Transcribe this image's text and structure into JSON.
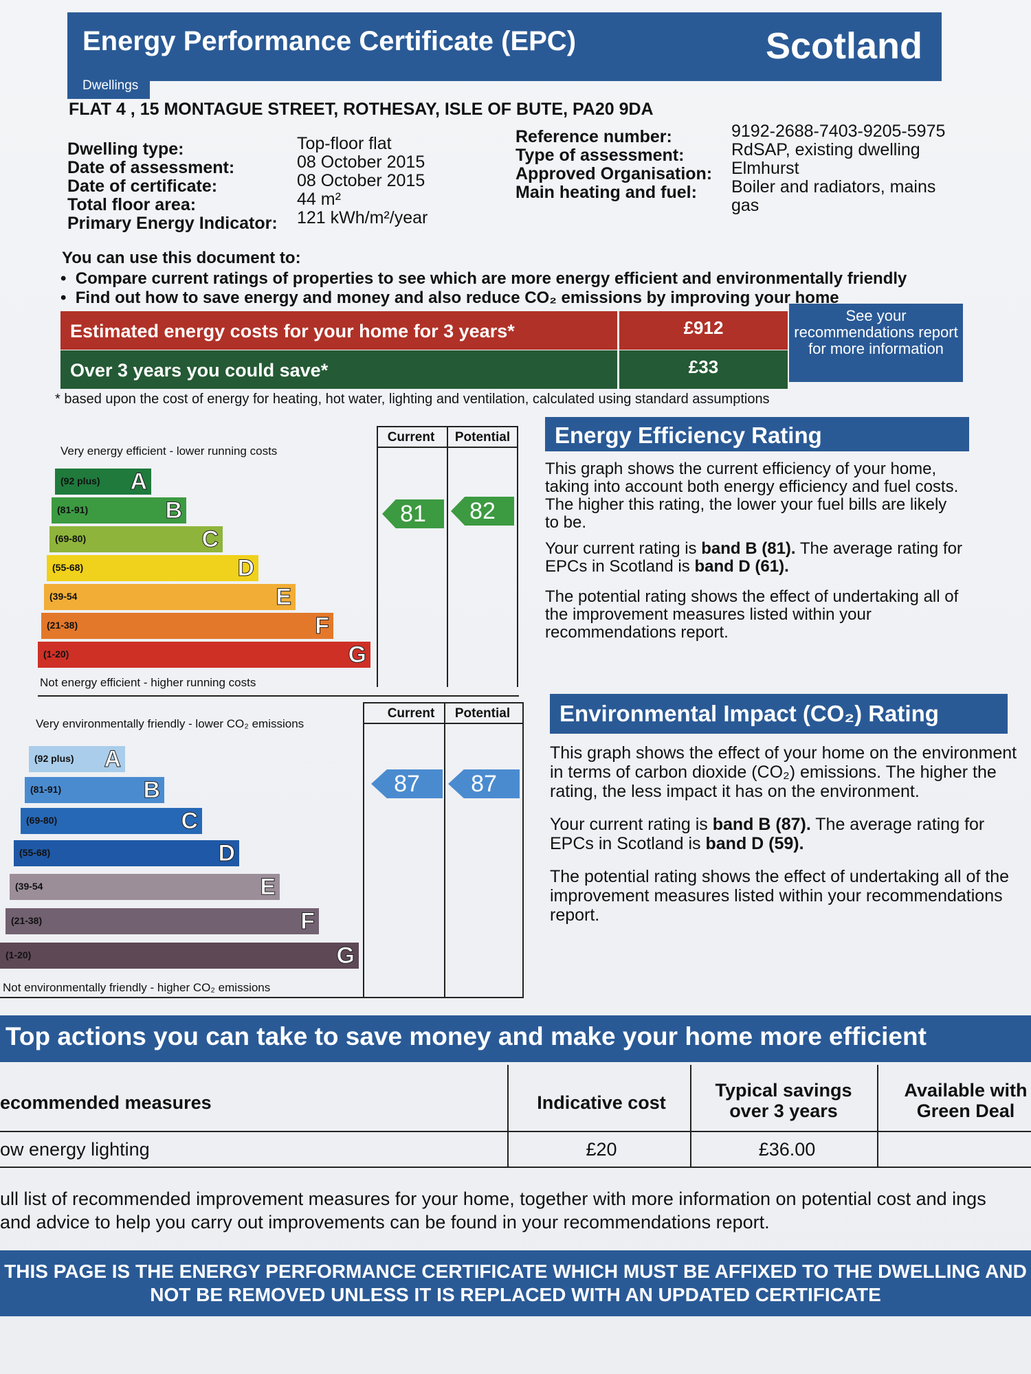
{
  "header": {
    "title": "Energy Performance Certificate (EPC)",
    "region": "Scotland",
    "subtitle": "Dwellings"
  },
  "address": "FLAT 4 , 15 MONTAGUE STREET, ROTHESAY, ISLE OF BUTE, PA20 9DA",
  "details_left": [
    {
      "label": "Dwelling type:",
      "value": "Top-floor flat"
    },
    {
      "label": "Date of assessment:",
      "value": "08 October 2015"
    },
    {
      "label": "Date of certificate:",
      "value": "08 October 2015"
    },
    {
      "label": "Total floor area:",
      "value": "44 m²"
    },
    {
      "label": "Primary Energy Indicator:",
      "value": "121 kWh/m²/year"
    }
  ],
  "details_right": [
    {
      "label": "Reference number:",
      "value": "9192-2688-7403-9205-5975"
    },
    {
      "label": "Type of assessment:",
      "value": "RdSAP, existing dwelling"
    },
    {
      "label": "Approved Organisation:",
      "value": "Elmhurst"
    },
    {
      "label": "Main heating and fuel:",
      "value": "Boiler and radiators, mains gas"
    }
  ],
  "use_intro": "You can use this document to:",
  "bullets": [
    "Compare current ratings of properties to see which are more energy efficient and environmentally friendly",
    "Find out how to save energy and money and also reduce CO₂ emissions by improving your home"
  ],
  "costs": {
    "estimated_label": "Estimated energy costs for your home for 3 years*",
    "estimated_value": "£912",
    "save_label": "Over 3 years you could save*",
    "save_value": "£33",
    "see_text": "See your recommendations report for more information",
    "footnote": "* based upon the cost of energy for heating, hot water, lighting and ventilation, calculated using standard assumptions"
  },
  "energy_chart": {
    "top_caption": "Very energy efficient - lower running costs",
    "bottom_caption": "Not energy efficient - higher running costs",
    "col_current": "Current",
    "col_potential": "Potential",
    "current": "81",
    "potential": "82",
    "bands": [
      {
        "range": "(92 plus)",
        "letter": "A",
        "color": "#1f7a3c"
      },
      {
        "range": "(81-91)",
        "letter": "B",
        "color": "#3c9a41"
      },
      {
        "range": "(69-80)",
        "letter": "C",
        "color": "#8fb43b"
      },
      {
        "range": "(55-68)",
        "letter": "D",
        "color": "#f0d11b"
      },
      {
        "range": "(39-54",
        "letter": "E",
        "color": "#f1ad35"
      },
      {
        "range": "(21-38)",
        "letter": "F",
        "color": "#e3782a"
      },
      {
        "range": "(1-20)",
        "letter": "G",
        "color": "#cf3026"
      }
    ]
  },
  "env_chart": {
    "top_caption": "Very environmentally friendly - lower CO₂ emissions",
    "bottom_caption": "Not environmentally friendly - higher CO₂ emissions",
    "col_current": "Current",
    "col_potential": "Potential",
    "current": "87",
    "potential": "87",
    "bands": [
      {
        "range": "(92 plus)",
        "letter": "A",
        "color": "#a9cdea"
      },
      {
        "range": "(81-91)",
        "letter": "B",
        "color": "#4a8bd0"
      },
      {
        "range": "(69-80)",
        "letter": "C",
        "color": "#2668b6"
      },
      {
        "range": "(55-68)",
        "letter": "D",
        "color": "#1f58a6"
      },
      {
        "range": "(39-54",
        "letter": "E",
        "color": "#9b8e99"
      },
      {
        "range": "(21-38)",
        "letter": "F",
        "color": "#726171"
      },
      {
        "range": "(1-20)",
        "letter": "G",
        "color": "#5e4856"
      }
    ]
  },
  "energy_panel": {
    "title": "Energy Efficiency Rating",
    "p1": "This graph shows the current efficiency of your home, taking into account both energy efficiency and fuel costs. The higher this rating, the lower your fuel bills are likely to be.",
    "p2a": "Your current rating is ",
    "p2b": "band B (81).",
    "p2c": " The average rating for EPCs in Scotland is ",
    "p2d": "band D (61).",
    "p3": "The potential rating shows the effect of undertaking all of the improvement measures listed within your recommendations report."
  },
  "env_panel": {
    "title": "Environmental Impact (CO₂) Rating",
    "p1": "This graph shows the effect of your home on the environment in terms of carbon dioxide (CO₂) emissions. The higher the rating, the less impact it has on the environment.",
    "p2a": "Your current rating is ",
    "p2b": "band B (87).",
    "p2c": " The average rating for EPCs in Scotland is ",
    "p2d": "band D (59).",
    "p3": "The potential rating shows the effect of undertaking all of the improvement measures listed within your recommendations report."
  },
  "actions": {
    "title": "Top actions you can take to save money and make your home more efficient",
    "headers": [
      "ecommended measures",
      "Indicative cost",
      "Typical savings over 3 years",
      "Available with Green Deal"
    ],
    "rows": [
      [
        "ow energy lighting",
        "£20",
        "£36.00",
        ""
      ]
    ],
    "note": "ull list of recommended improvement measures for your home, together with more information on potential cost and ings and advice to help you carry out improvements can be found in your recommendations report."
  },
  "bottom_banner": "THIS PAGE IS THE ENERGY PERFORMANCE CERTIFICATE WHICH MUST BE AFFIXED TO THE DWELLING AND NOT BE REMOVED UNLESS IT IS REPLACED WITH AN UPDATED CERTIFICATE"
}
